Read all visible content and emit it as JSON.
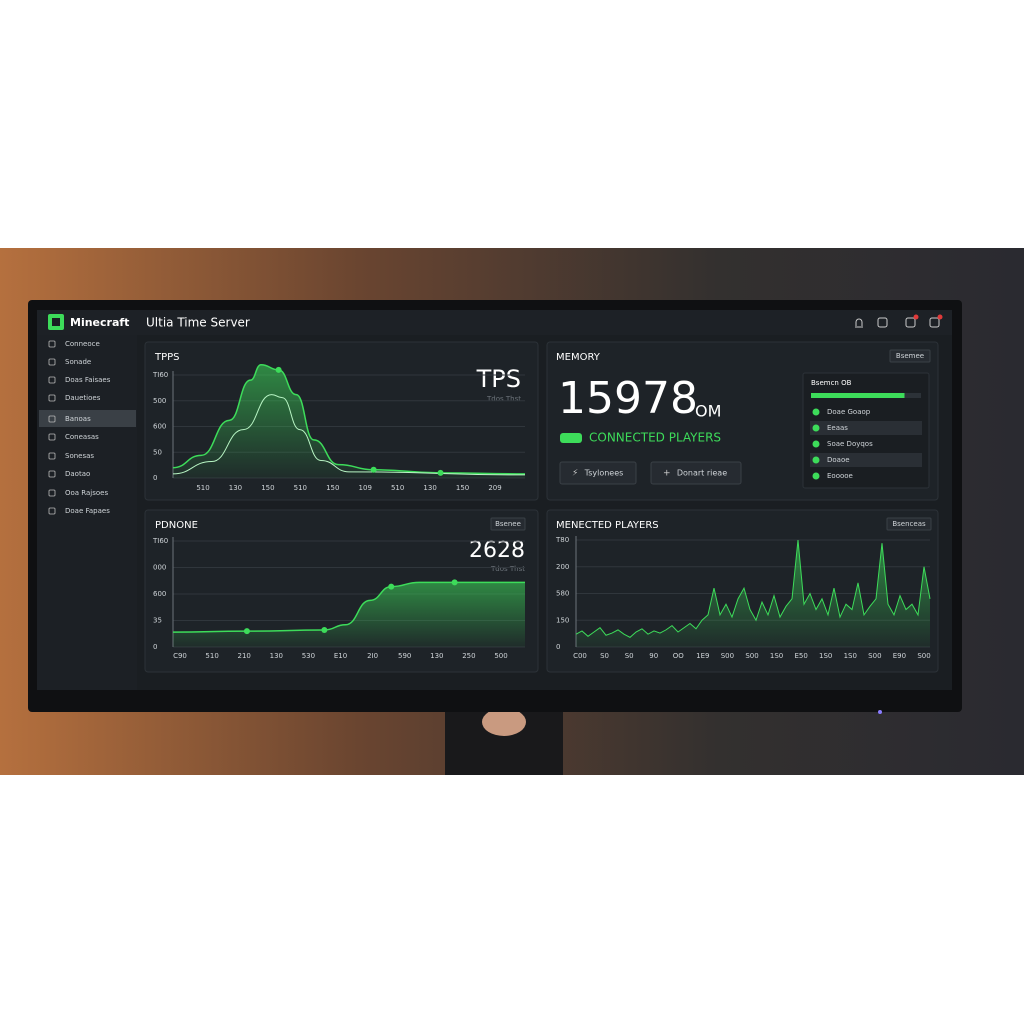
{
  "header": {
    "brand": "Minecraft",
    "title": "Ultia Time Server"
  },
  "sidebar": [
    "Conneoce",
    "Sonade",
    "Doas Faisaes",
    "Dauetioes",
    "Banoas",
    "Coneasas",
    "Sonesas",
    "Daotao",
    "Ooa Rajsoes",
    "Doae Fapaes"
  ],
  "tps": {
    "title": "TPPS",
    "value": "TPS",
    "caption": "Tdos Thst",
    "yticks": [
      "TI60",
      "500",
      "600",
      "50",
      "0"
    ],
    "xticks": [
      "510",
      "130",
      "150",
      "510",
      "150",
      "109",
      "510",
      "130",
      "150",
      "209"
    ],
    "chart": {
      "xlim": [
        0,
        100
      ],
      "ylim": [
        0,
        100
      ],
      "series": [
        {
          "color": "#3ddc5a",
          "fill": true,
          "x": [
            0,
            8,
            16,
            22,
            25,
            30,
            35,
            40,
            47,
            57,
            76,
            100
          ],
          "values": [
            10,
            22,
            56,
            95,
            110,
            105,
            81,
            37,
            13,
            8,
            5,
            4
          ]
        },
        {
          "color": "#b8f5c4",
          "fill": false,
          "x": [
            0,
            11,
            20,
            28,
            31,
            36,
            42,
            50,
            100
          ],
          "values": [
            4,
            16,
            47,
            81,
            78,
            47,
            17,
            6,
            3
          ]
        }
      ],
      "markers": {
        "x": [
          30,
          57,
          76
        ],
        "values": [
          105,
          8,
          5
        ]
      }
    }
  },
  "memory": {
    "title": "MEMORY",
    "button": "Bsemee",
    "value": "15978",
    "unit": "OM",
    "status": "CONNECTED PLAYERS",
    "actions": [
      "Tsylonees",
      "Donart rieae"
    ],
    "list_title": "Bsemcn OB",
    "progress": {
      "value": 85,
      "lim": [
        0,
        100
      ]
    },
    "list": [
      "Doae Goaop",
      "Eeaas",
      "Soae Doyqos",
      "Doaoe",
      "Eooooe"
    ]
  },
  "ptimes": {
    "title": "PDNONE",
    "button": "Bsenee",
    "value": "2628",
    "caption": "Tdos Thst",
    "yticks": [
      "TI60",
      "000",
      "600",
      "35",
      "0"
    ],
    "xticks": [
      "C90",
      "510",
      "210",
      "130",
      "530",
      "E10",
      "2I0",
      "590",
      "130",
      "250",
      "500"
    ],
    "chart": {
      "xlim": [
        0,
        100
      ],
      "ylim": [
        0,
        100
      ],
      "series": [
        {
          "color": "#3ddc5a",
          "fill": true,
          "x": [
            0,
            21,
            43,
            49,
            56,
            62,
            70,
            80,
            100
          ],
          "values": [
            14,
            15,
            16,
            21,
            44,
            57,
            61,
            61,
            61
          ]
        }
      ],
      "markers": {
        "x": [
          21,
          43,
          62,
          80
        ],
        "values": [
          15,
          16,
          57,
          61
        ]
      }
    }
  },
  "players": {
    "title": "MENECTED PLAYERS",
    "button": "Bsenceas",
    "yticks": [
      "T80",
      "200",
      "580",
      "150",
      "0"
    ],
    "xticks": [
      "C00",
      "S0",
      "S0",
      "90",
      "OO",
      "1E9",
      "S00",
      "S00",
      "1S0",
      "E50",
      "1S0",
      "1S0",
      "S00",
      "E90",
      "S00"
    ],
    "chart": {
      "ylim": [
        0,
        100
      ],
      "color": "#3ddc5a",
      "values": [
        12,
        15,
        10,
        14,
        18,
        11,
        13,
        16,
        12,
        9,
        14,
        17,
        12,
        15,
        13,
        16,
        20,
        14,
        18,
        22,
        17,
        25,
        30,
        55,
        30,
        40,
        28,
        45,
        55,
        35,
        25,
        42,
        30,
        48,
        28,
        38,
        45,
        100,
        40,
        50,
        35,
        45,
        30,
        55,
        28,
        40,
        35,
        60,
        30,
        38,
        45,
        97,
        40,
        30,
        48,
        35,
        40,
        30,
        75,
        45
      ]
    }
  }
}
